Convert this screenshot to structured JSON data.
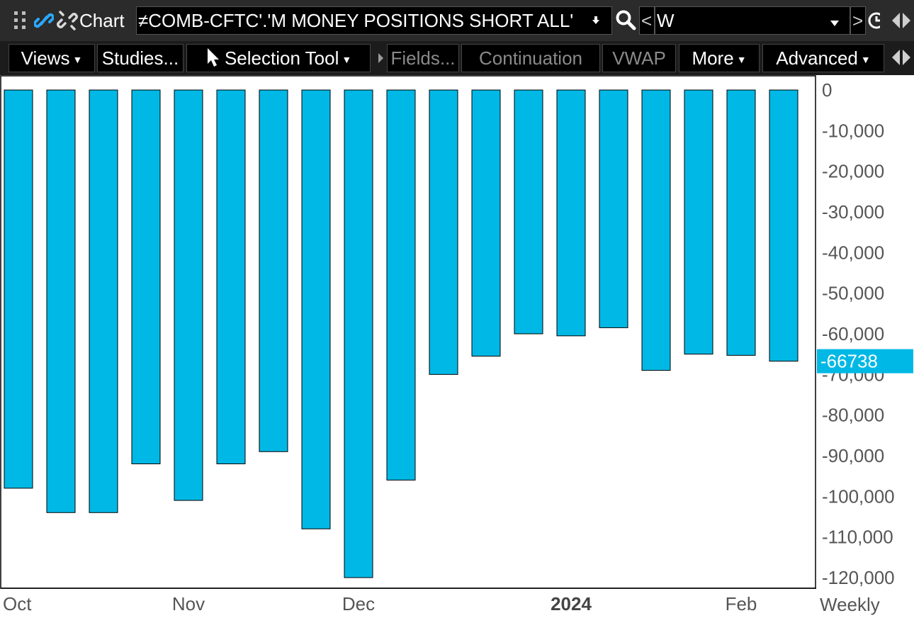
{
  "toolbar": {
    "app_title": "Chart",
    "symbol": "≠COMB-CFTC'.'M MONEY POSITIONS SHORT ALL'",
    "period_prev": "<",
    "period": "W",
    "period_next": ">",
    "views": "Views",
    "studies": "Studies...",
    "selection_tool": "Selection Tool",
    "fields": "Fields...",
    "continuation": "Continuation",
    "vwap": "VWAP",
    "more": "More",
    "advanced": "Advanced"
  },
  "colors": {
    "bar": "#00b8e5",
    "last_value_bg": "#00b8e5"
  },
  "chart_data": {
    "type": "bar",
    "title": "",
    "frequency_label": "Weekly",
    "series": [
      {
        "values": [
          -98000,
          -104000,
          -104000,
          -92000,
          -101000,
          -92000,
          -89000,
          -108000,
          -120000,
          -96000,
          -70000,
          -65500,
          -60000,
          -60500,
          -58500,
          -69000,
          -65000,
          -65300,
          -66738
        ]
      }
    ],
    "last_value": "-66738",
    "ylim": [
      -122000,
      0
    ],
    "y_ticks": [
      0,
      -10000,
      -20000,
      -30000,
      -40000,
      -50000,
      -60000,
      -70000,
      -80000,
      -90000,
      -100000,
      -110000,
      -120000
    ],
    "y_tick_labels": [
      "0",
      "-10,000",
      "-20,000",
      "-30,000",
      "-40,000",
      "-50,000",
      "-60,000",
      "-70,000",
      "-80,000",
      "-90,000",
      "-100,000",
      "-110,000",
      "-120,000"
    ],
    "x_labels": [
      {
        "text": "Oct",
        "bar_index": 0,
        "bold": false
      },
      {
        "text": "Nov",
        "bar_index": 4,
        "bold": false
      },
      {
        "text": "Dec",
        "bar_index": 8,
        "bold": false
      },
      {
        "text": "2024",
        "bar_index": 13,
        "bold": true
      },
      {
        "text": "Feb",
        "bar_index": 17,
        "bold": false
      }
    ]
  }
}
